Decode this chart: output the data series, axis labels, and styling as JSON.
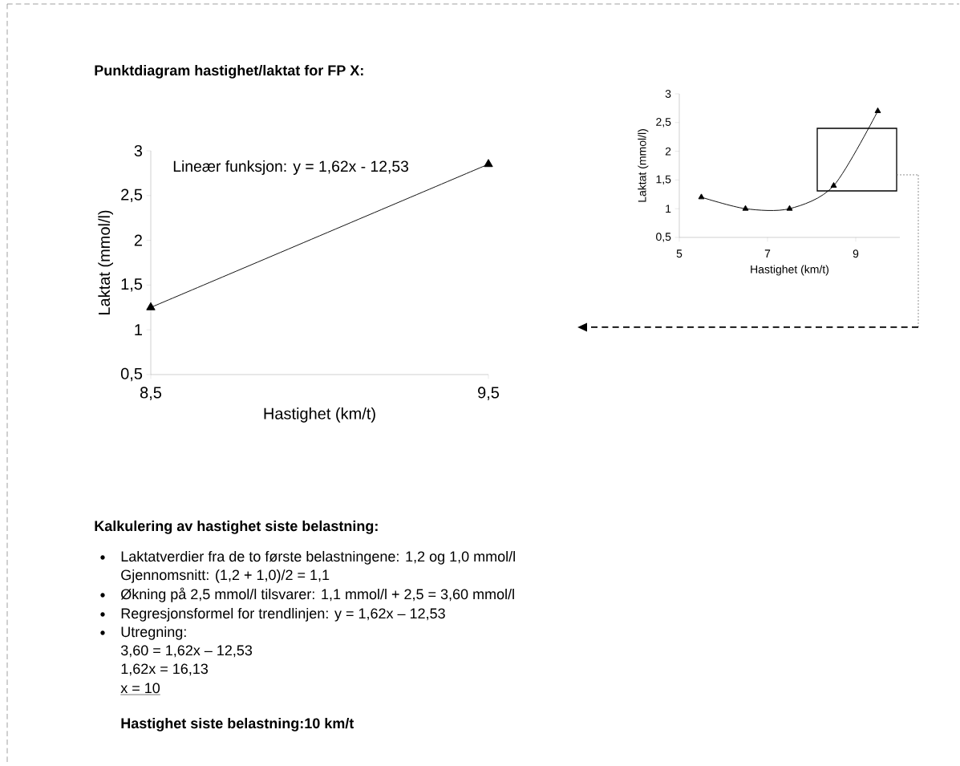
{
  "chart_data": [
    {
      "type": "line",
      "title": "Punktdiagram hastighet/laktat for FP X:",
      "xlabel": "Hastighet (km/t)",
      "ylabel": "Laktat (mmol/l)",
      "marker": "triangle",
      "x": [
        8.5,
        9.5
      ],
      "series": [
        {
          "color": "#000000",
          "values": [
            1.25,
            2.85
          ]
        }
      ],
      "xlim": [
        8.5,
        9.5
      ],
      "ylim": [
        0.5,
        3
      ],
      "xticks": [
        {
          "value": 8.5,
          "label": "8,5"
        },
        {
          "value": 9.5,
          "label": "9,5"
        }
      ],
      "yticks": [
        {
          "value": 0.5,
          "label": "0,5"
        },
        1,
        {
          "value": 1.5,
          "label": "1,5"
        },
        2,
        {
          "value": 2.5,
          "label": "2,5"
        },
        3
      ],
      "annotations": [
        "Lineær funksjon: y = 1,62x - 12,53",
        "Kalkulering av hastighet siste belastning:",
        "Laktatverdier fra de to første belastningene: 1,2 og 1,0 mmol/l",
        "Gjennomsnitt: (1,2 + 1,0)/2 = 1,1",
        "Økning på 2,5 mmol/l tilsvarer: 1,1 mmol/l + 2,5 = 3,60 mmol/l",
        "Regresjonsformel for trendlinjen: y = 1,62x – 12,53",
        "Utregning:",
        "3,60 = 1,62x – 12,53",
        "1,62x = 16,13",
        "x = 10",
        "Hastighet siste belastning:10 km/t"
      ]
    },
    {
      "type": "line",
      "xlabel": "Hastighet (km/t)",
      "ylabel": "Laktat (mmol/l)",
      "marker": "triangle",
      "x": [
        5.5,
        6.5,
        7.5,
        8.5,
        9.5
      ],
      "series": [
        {
          "color": "#000000",
          "values": [
            1.2,
            1.0,
            1.0,
            1.4,
            2.7
          ]
        }
      ],
      "xlim": [
        5,
        10
      ],
      "ylim": [
        0.5,
        3
      ],
      "xticks": [
        5,
        7,
        9
      ],
      "yticks": [
        {
          "value": 0.5,
          "label": "0,5"
        },
        1,
        {
          "value": 1.5,
          "label": "1,5"
        },
        2,
        {
          "value": 2.5,
          "label": "2,5"
        },
        3
      ]
    }
  ]
}
